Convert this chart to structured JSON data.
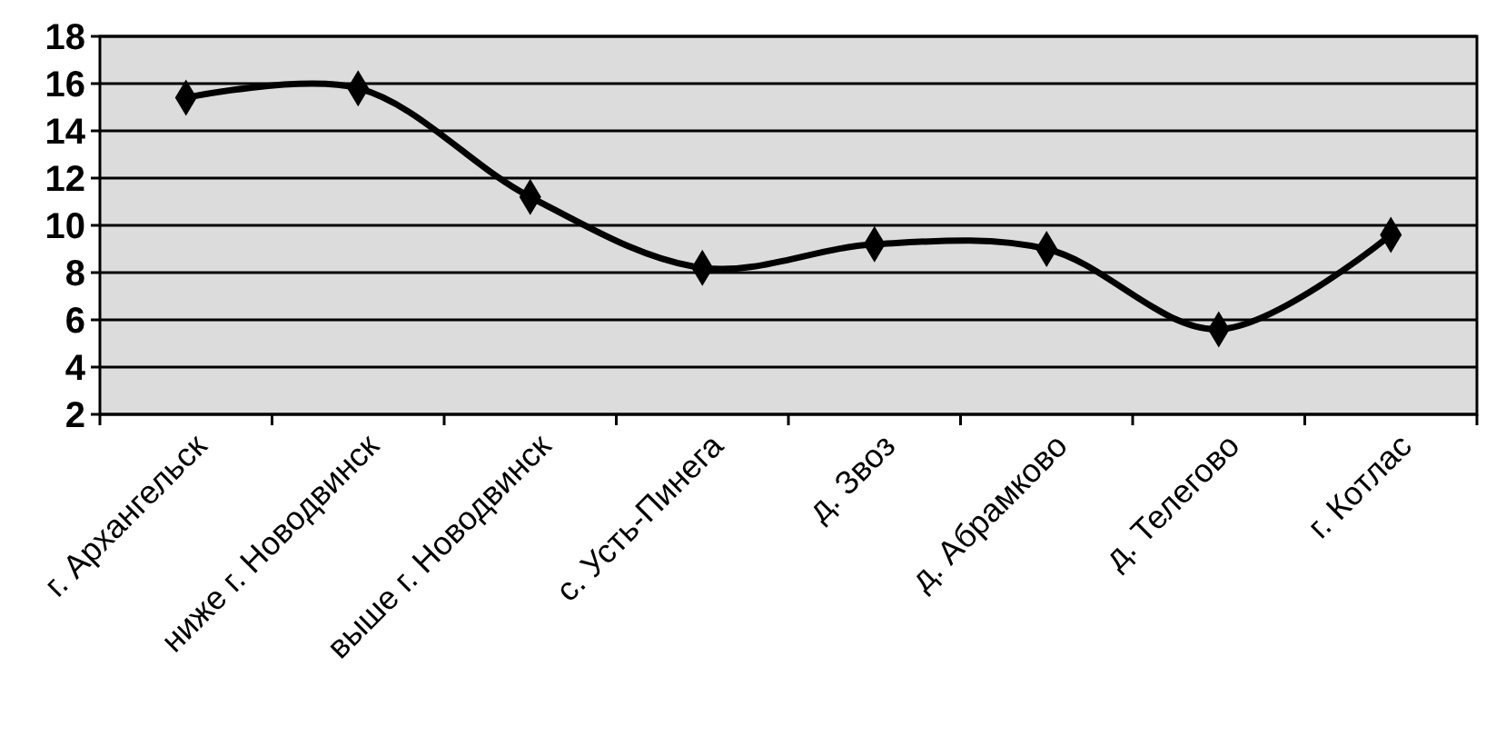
{
  "chart_data": {
    "type": "line",
    "categories": [
      "г. Архангельск",
      "ниже г. Новодвинск",
      "выше г. Новодвинск",
      "с. Усть-Пинега",
      "д. Звоз",
      "д. Абрамково",
      "д. Телегово",
      "г. Котлас"
    ],
    "values": [
      15.4,
      15.8,
      11.2,
      8.2,
      9.2,
      9.0,
      5.6,
      9.6
    ],
    "color": "#000000",
    "ylim": [
      2,
      18
    ],
    "yticks": [
      2,
      4,
      6,
      8,
      10,
      12,
      14,
      16,
      18
    ],
    "grid": "y",
    "marker": "diamond",
    "line_style": "solid"
  }
}
